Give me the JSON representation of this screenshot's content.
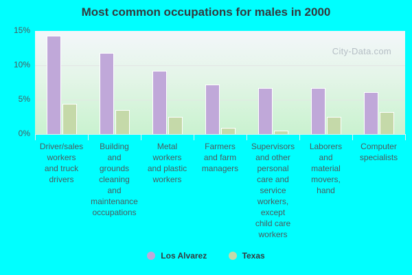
{
  "title": "Most common occupations for males in 2000",
  "watermark": "City-Data.com",
  "colors": {
    "los_alvarez": "#c0a8d9",
    "texas": "#c5d9a9"
  },
  "y_ticks": [
    "0%",
    "5%",
    "10%",
    "15%"
  ],
  "legend": [
    {
      "label": "Los Alvarez",
      "color": "#c0a8d9"
    },
    {
      "label": "Texas",
      "color": "#c5d9a9"
    }
  ],
  "chart_data": {
    "type": "bar",
    "title": "Most common occupations for males in 2000",
    "xlabel": "",
    "ylabel": "",
    "ylim": [
      0,
      15
    ],
    "y_ticks": [
      0,
      5,
      10,
      15
    ],
    "y_tick_format": "percent",
    "grid": true,
    "legend_position": "bottom",
    "categories": [
      "Driver/sales workers and truck drivers",
      "Building and grounds cleaning and maintenance occupations",
      "Metal workers and plastic workers",
      "Farmers and farm managers",
      "Supervisors and other personal care and service workers, except child care workers",
      "Laborers and material movers, hand",
      "Computer specialists"
    ],
    "category_lines": [
      "Driver/sales\nworkers\nand truck\ndrivers",
      "Building\nand\ngrounds\ncleaning\nand\nmaintenance\noccupations",
      "Metal\nworkers\nand plastic\nworkers",
      "Farmers\nand farm\nmanagers",
      "Supervisors\nand other\npersonal\ncare and\nservice\nworkers,\nexcept\nchild care\nworkers",
      "Laborers\nand\nmaterial\nmovers,\nhand",
      "Computer\nspecialists"
    ],
    "series": [
      {
        "name": "Los Alvarez",
        "color": "#c0a8d9",
        "values": [
          14.3,
          11.8,
          9.2,
          7.2,
          6.7,
          6.7,
          6.1
        ]
      },
      {
        "name": "Texas",
        "color": "#c5d9a9",
        "values": [
          4.4,
          3.5,
          2.5,
          0.9,
          0.5,
          2.5,
          3.2
        ]
      }
    ]
  }
}
